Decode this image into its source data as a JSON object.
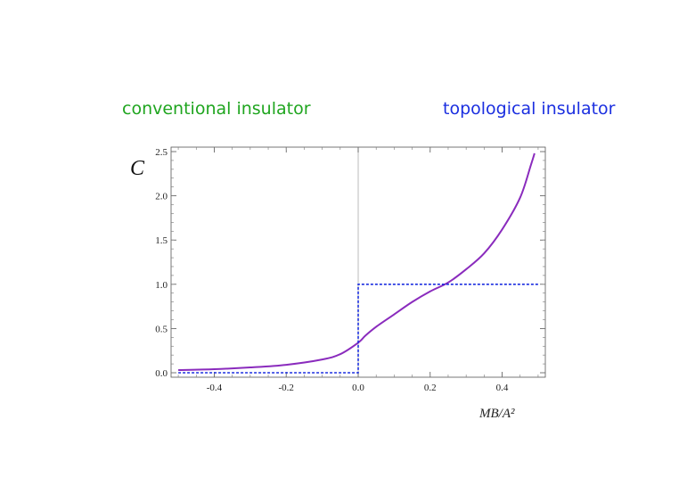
{
  "labels": {
    "left": "conventional insulator",
    "left_color": "#1fa51f",
    "right": "topological insulator",
    "right_color": "#1b2fe0"
  },
  "chart_data": {
    "type": "line",
    "xlabel": "MB/A²",
    "ylabel": "C",
    "xlim": [
      -0.52,
      0.52
    ],
    "ylim": [
      0,
      2.5
    ],
    "x_ticks": [
      {
        "value": -0.4,
        "label": "-0.4"
      },
      {
        "value": -0.2,
        "label": "-0.2"
      },
      {
        "value": 0.0,
        "label": "0.0"
      },
      {
        "value": 0.2,
        "label": "0.2"
      },
      {
        "value": 0.4,
        "label": "0.4"
      }
    ],
    "y_ticks": [
      {
        "value": 0.0,
        "label": "0.0"
      },
      {
        "value": 0.5,
        "label": "0.5"
      },
      {
        "value": 1.0,
        "label": "1.0"
      },
      {
        "value": 1.5,
        "label": "1.5"
      },
      {
        "value": 2.0,
        "label": "2.0"
      },
      {
        "value": 2.5,
        "label": "2.5"
      }
    ],
    "grid": false,
    "series": [
      {
        "color": "#8a2bbd",
        "style": "solid",
        "x": [
          -0.5,
          -0.4,
          -0.3,
          -0.2,
          -0.1,
          -0.05,
          0.0,
          0.02,
          0.05,
          0.1,
          0.15,
          0.2,
          0.25,
          0.3,
          0.35,
          0.4,
          0.45,
          0.48,
          0.49
        ],
        "y": [
          0.03,
          0.04,
          0.06,
          0.09,
          0.15,
          0.21,
          0.34,
          0.42,
          0.52,
          0.66,
          0.8,
          0.92,
          1.02,
          1.17,
          1.35,
          1.62,
          1.98,
          2.35,
          2.48
        ]
      },
      {
        "color": "#1b2fe0",
        "style": "dashed",
        "x": [
          -0.5,
          0.0,
          0.0,
          0.5
        ],
        "y": [
          0.0,
          0.0,
          1.0,
          1.0
        ]
      }
    ]
  }
}
